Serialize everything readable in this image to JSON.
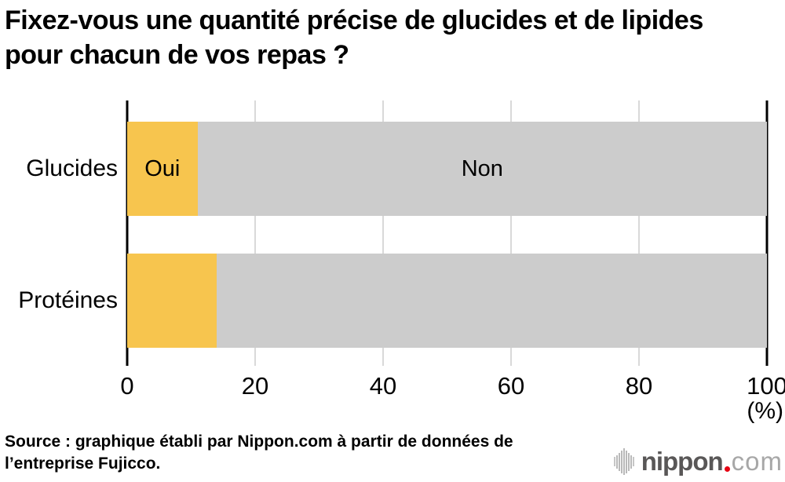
{
  "title": {
    "text": "Fixez-vous une quantité précise de glucides et de lipides pour chacun de vos repas ?"
  },
  "chart_data": {
    "type": "bar",
    "orientation": "horizontal",
    "stacked": true,
    "title": "Fixez-vous une quantité précise de glucides et de lipides pour chacun de vos repas ?",
    "categories": [
      "Glucides",
      "Protéines"
    ],
    "series": [
      {
        "name": "Oui",
        "values": [
          11,
          14
        ],
        "color": "#f7c54e"
      },
      {
        "name": "Non",
        "values": [
          89,
          86
        ],
        "color": "#cccccc"
      }
    ],
    "segment_labels_row": 0,
    "xlim": [
      0,
      100
    ],
    "xticks": [
      0,
      20,
      40,
      60,
      80,
      100
    ],
    "xlabel": "(%)",
    "grid": true,
    "axis_color": "#000000",
    "gridline_color": "#d9d9d9",
    "legend_position": "in-bar"
  },
  "source": {
    "text": "Source : graphique établi par Nippon.com à partir de données de l’entreprise Fujicco."
  },
  "logo": {
    "icon": "soundwave-bars-icon",
    "wordmark": "nippon",
    "suffix": "com",
    "wordmark_color": "#595757",
    "dot_color": "#e60012",
    "suffix_color": "#a7a7a7"
  }
}
